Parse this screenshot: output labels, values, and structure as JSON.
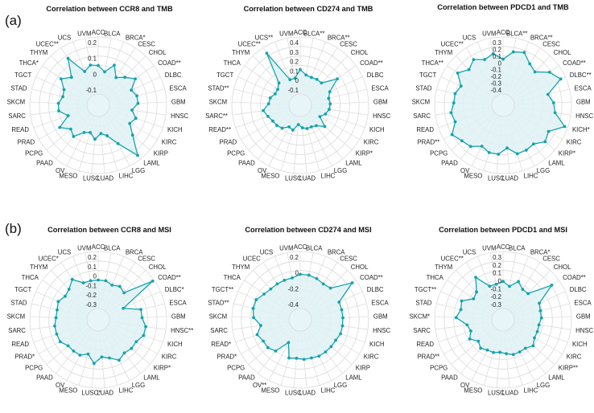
{
  "panel_labels": [
    "(a)",
    "(b)"
  ],
  "colors": {
    "series": "#14a3ad",
    "fill": "#dff2f5",
    "grid": "#d9d9d9",
    "inner": "#e8f5f8"
  },
  "chart_data": [
    {
      "type": "radar",
      "title": "Correlation between CCR8 and TMB",
      "categories": [
        "ACC",
        "BLCA",
        "BRCA*",
        "CESC",
        "CHOL",
        "COAD**",
        "DLBC",
        "ESCA",
        "GBM",
        "HNSC",
        "KICH",
        "KIRC",
        "KIRP",
        "LAML",
        "LGG",
        "LIHC",
        "LUAD",
        "LUSC",
        "MESO",
        "OV",
        "PAAD",
        "PCPG",
        "PRAD",
        "READ",
        "SARC",
        "SKCM",
        "STAD",
        "TGCT",
        "THCA*",
        "THYM",
        "UCEC**",
        "UCS",
        "UVM"
      ],
      "ticks": [
        "0.2",
        "0.1",
        "0",
        "-0.1"
      ],
      "ylim": [
        -0.2,
        0.3
      ],
      "values": [
        0.05,
        0.0,
        0.08,
        -0.01,
        0.04,
        0.1,
        0.02,
        0.05,
        0.05,
        0.0,
        0.05,
        0.02,
        0.1,
        0.26,
        0.08,
        -0.02,
        -0.05,
        0.0,
        -0.05,
        -0.03,
        0.05,
        0.02,
        0.09,
        -0.02,
        0.05,
        0.05,
        0.02,
        0.03,
        0.1,
        0.04,
        0.19,
        0.02,
        0.06
      ]
    },
    {
      "type": "radar",
      "title": "Correlation between CD274 and TMB",
      "categories": [
        "ACC",
        "BLCA**",
        "BRCA**",
        "CESC",
        "CHOL",
        "COAD**",
        "DLBC",
        "ESCA",
        "GBM",
        "HNSC",
        "KICH",
        "KIRC",
        "KIRP*",
        "LAML",
        "LGG",
        "LIHC",
        "LUAD",
        "LUSC",
        "MESO",
        "OV",
        "PAAD",
        "PCPG",
        "PRAD",
        "READ**",
        "SARC**",
        "SKCM",
        "STAD**",
        "TGCT",
        "THCA",
        "THYM",
        "UCEC**",
        "UCS**",
        "UVM"
      ],
      "ticks": [
        "0.4",
        "0.3",
        "0.2",
        "0.1",
        "0",
        "-0.1"
      ],
      "ylim": [
        -0.2,
        0.5
      ],
      "values": [
        0.1,
        0.04,
        0.03,
        0.04,
        0.04,
        0.22,
        0.06,
        0.02,
        0.03,
        0.02,
        -0.01,
        -0.06,
        0.06,
        -0.02,
        -0.04,
        -0.04,
        -0.06,
        -0.1,
        -0.02,
        -0.04,
        0.02,
        0.04,
        0.05,
        0.08,
        0.12,
        0.05,
        0.04,
        0.0,
        0.0,
        0.04,
        0.42,
        0.0,
        0.0
      ]
    },
    {
      "type": "radar",
      "title": "Correlation between PDCD1 and TMB",
      "categories": [
        "ACC",
        "BLCA**",
        "BRCA**",
        "CESC",
        "CHOL",
        "COAD**",
        "DLBC**",
        "ESCA",
        "GBM",
        "HNSC",
        "KICH*",
        "KIRC",
        "KIRP*",
        "LAML",
        "LGG",
        "LIHC",
        "LUAD",
        "LUSC",
        "MESO",
        "OV",
        "PAAD",
        "PCPG",
        "PRAD**",
        "READ",
        "SARC",
        "SKCM",
        "STAD",
        "TGCT",
        "THCA**",
        "THYM",
        "UCEC**",
        "UCS",
        "UVM"
      ],
      "ticks": [
        "0.3",
        "0.2",
        "0.1",
        "0",
        "-0.1",
        "-0.2",
        "-0.3",
        "-0.4"
      ],
      "ylim": [
        -0.5,
        0.4
      ],
      "values": [
        0.05,
        0.18,
        0.22,
        0.1,
        0.05,
        0.22,
        0.32,
        0.05,
        0.12,
        0.15,
        0.35,
        0.15,
        0.2,
        0.1,
        0.12,
        0.12,
        0.0,
        0.1,
        0.1,
        0.05,
        0.15,
        0.18,
        0.25,
        0.12,
        0.15,
        0.1,
        0.1,
        0.05,
        0.2,
        0.1,
        0.18,
        0.1,
        0.15
      ]
    },
    {
      "type": "radar",
      "title": "Correlation between CCR8 and MSI",
      "categories": [
        "ACC",
        "BLCA",
        "BRCA",
        "CESC",
        "CHOL",
        "COAD**",
        "DLBC*",
        "ESCA",
        "GBM",
        "HNSC**",
        "KICH",
        "KIRC",
        "KIRP*",
        "LAML",
        "LGG",
        "LIHC",
        "LUAD",
        "LUSC*",
        "MESO",
        "OV",
        "PAAD",
        "PCPG",
        "PRAD*",
        "READ",
        "SARC",
        "SKCM",
        "STAD",
        "TGCT",
        "THCA",
        "THYM",
        "UCEC*",
        "UCS",
        "UVM"
      ],
      "ticks": [
        "0.2",
        "0.1",
        "0",
        "-0.1",
        "-0.2",
        "-0.3"
      ],
      "ylim": [
        -0.4,
        0.3
      ],
      "values": [
        -0.05,
        -0.05,
        -0.08,
        -0.05,
        -0.08,
        0.28,
        -0.2,
        0.0,
        0.0,
        0.05,
        0.05,
        0.0,
        0.0,
        -0.02,
        0.02,
        -0.05,
        -0.08,
        0.0,
        -0.1,
        -0.05,
        -0.05,
        -0.05,
        0.0,
        0.0,
        0.0,
        -0.02,
        -0.02,
        0.0,
        -0.04,
        -0.02,
        0.05,
        -0.05,
        -0.05
      ]
    },
    {
      "type": "radar",
      "title": "Correlation between CD274 and MSI",
      "categories": [
        "ACC",
        "BLCA",
        "BRCA",
        "CESC",
        "CHOL",
        "COAD**",
        "DLBC",
        "ESCA",
        "GBM",
        "HNSC",
        "KICH",
        "KIRC",
        "KIRP",
        "LAML",
        "LGG",
        "LIHC",
        "LUAD",
        "LUSC",
        "MESO",
        "OV**",
        "PAAD",
        "PCPG",
        "PRAD*",
        "READ*",
        "SARC",
        "SKCM",
        "STAD**",
        "TGCT**",
        "THCA",
        "THYM",
        "UCEC",
        "UCS",
        "UVM"
      ],
      "ticks": [
        "0.2",
        "0",
        "-0.2",
        "-0.4"
      ],
      "ylim": [
        -0.6,
        0.4
      ],
      "values": [
        0.0,
        0.0,
        -0.02,
        -0.05,
        -0.03,
        0.32,
        -0.05,
        -0.05,
        -0.05,
        -0.05,
        -0.05,
        -0.08,
        -0.08,
        -0.08,
        -0.08,
        -0.1,
        -0.1,
        -0.12,
        -0.1,
        -0.35,
        -0.1,
        -0.05,
        -0.05,
        0.0,
        -0.1,
        0.02,
        0.05,
        0.05,
        -0.02,
        -0.05,
        -0.05,
        -0.05,
        -0.05
      ]
    },
    {
      "type": "radar",
      "title": "Correlation between PDCD1 and MSI",
      "categories": [
        "ACC",
        "BLCA",
        "BRCA*",
        "CESC",
        "CHOL",
        "COAD**",
        "DLBC",
        "ESCA",
        "GBM",
        "HNSC",
        "KICH",
        "KIRC",
        "KIRP**",
        "LAML",
        "LGG",
        "LIHC",
        "LUAD",
        "LUSC",
        "MESO",
        "OV",
        "PAAD",
        "PCPG",
        "PRAD**",
        "READ",
        "SARC",
        "SKCM*",
        "STAD",
        "TGCT**",
        "THCA",
        "THYM",
        "UCEC**",
        "UCS",
        "UVM"
      ],
      "ticks": [
        "0.3",
        "0.2",
        "0.1",
        "0",
        "-0.1",
        "-0.2",
        "-0.3"
      ],
      "ylim": [
        -0.4,
        0.4
      ],
      "values": [
        -0.02,
        -0.08,
        0.02,
        -0.05,
        -0.05,
        0.28,
        0.0,
        -0.02,
        -0.02,
        -0.05,
        -0.05,
        -0.05,
        0.0,
        -0.05,
        -0.05,
        -0.05,
        -0.08,
        -0.1,
        -0.08,
        -0.08,
        -0.05,
        -0.1,
        -0.02,
        -0.08,
        -0.05,
        0.1,
        0.05,
        0.08,
        -0.05,
        -0.02,
        0.15,
        -0.05,
        -0.05
      ]
    }
  ]
}
